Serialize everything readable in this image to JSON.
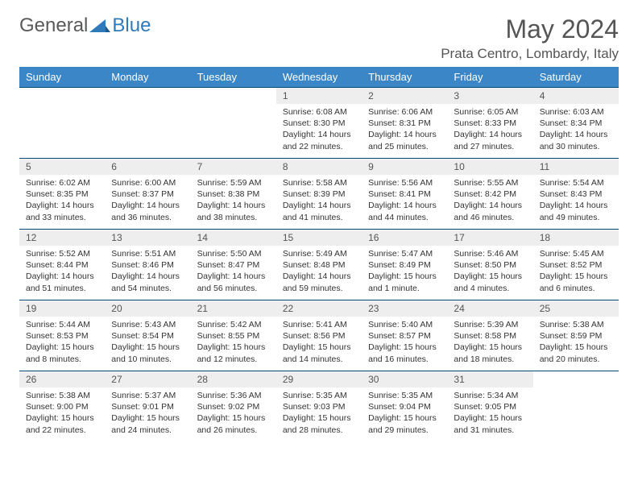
{
  "brand": {
    "part1": "General",
    "part2": "Blue"
  },
  "title": "May 2024",
  "location": "Prata Centro, Lombardy, Italy",
  "colors": {
    "header_bg": "#3b86c6",
    "header_text": "#ffffff",
    "daynum_bg": "#eeeeee",
    "row_border": "#004a7c",
    "brand_gray": "#58595b",
    "brand_blue": "#2f7ab9",
    "text": "#333333"
  },
  "typography": {
    "title_fontsize": 32,
    "location_fontsize": 17,
    "th_fontsize": 13,
    "cell_fontsize": 10.5
  },
  "weekdays": [
    "Sunday",
    "Monday",
    "Tuesday",
    "Wednesday",
    "Thursday",
    "Friday",
    "Saturday"
  ],
  "weeks": [
    [
      null,
      null,
      null,
      {
        "n": "1",
        "sr": "Sunrise: 6:08 AM",
        "ss": "Sunset: 8:30 PM",
        "d1": "Daylight: 14 hours",
        "d2": "and 22 minutes."
      },
      {
        "n": "2",
        "sr": "Sunrise: 6:06 AM",
        "ss": "Sunset: 8:31 PM",
        "d1": "Daylight: 14 hours",
        "d2": "and 25 minutes."
      },
      {
        "n": "3",
        "sr": "Sunrise: 6:05 AM",
        "ss": "Sunset: 8:33 PM",
        "d1": "Daylight: 14 hours",
        "d2": "and 27 minutes."
      },
      {
        "n": "4",
        "sr": "Sunrise: 6:03 AM",
        "ss": "Sunset: 8:34 PM",
        "d1": "Daylight: 14 hours",
        "d2": "and 30 minutes."
      }
    ],
    [
      {
        "n": "5",
        "sr": "Sunrise: 6:02 AM",
        "ss": "Sunset: 8:35 PM",
        "d1": "Daylight: 14 hours",
        "d2": "and 33 minutes."
      },
      {
        "n": "6",
        "sr": "Sunrise: 6:00 AM",
        "ss": "Sunset: 8:37 PM",
        "d1": "Daylight: 14 hours",
        "d2": "and 36 minutes."
      },
      {
        "n": "7",
        "sr": "Sunrise: 5:59 AM",
        "ss": "Sunset: 8:38 PM",
        "d1": "Daylight: 14 hours",
        "d2": "and 38 minutes."
      },
      {
        "n": "8",
        "sr": "Sunrise: 5:58 AM",
        "ss": "Sunset: 8:39 PM",
        "d1": "Daylight: 14 hours",
        "d2": "and 41 minutes."
      },
      {
        "n": "9",
        "sr": "Sunrise: 5:56 AM",
        "ss": "Sunset: 8:41 PM",
        "d1": "Daylight: 14 hours",
        "d2": "and 44 minutes."
      },
      {
        "n": "10",
        "sr": "Sunrise: 5:55 AM",
        "ss": "Sunset: 8:42 PM",
        "d1": "Daylight: 14 hours",
        "d2": "and 46 minutes."
      },
      {
        "n": "11",
        "sr": "Sunrise: 5:54 AM",
        "ss": "Sunset: 8:43 PM",
        "d1": "Daylight: 14 hours",
        "d2": "and 49 minutes."
      }
    ],
    [
      {
        "n": "12",
        "sr": "Sunrise: 5:52 AM",
        "ss": "Sunset: 8:44 PM",
        "d1": "Daylight: 14 hours",
        "d2": "and 51 minutes."
      },
      {
        "n": "13",
        "sr": "Sunrise: 5:51 AM",
        "ss": "Sunset: 8:46 PM",
        "d1": "Daylight: 14 hours",
        "d2": "and 54 minutes."
      },
      {
        "n": "14",
        "sr": "Sunrise: 5:50 AM",
        "ss": "Sunset: 8:47 PM",
        "d1": "Daylight: 14 hours",
        "d2": "and 56 minutes."
      },
      {
        "n": "15",
        "sr": "Sunrise: 5:49 AM",
        "ss": "Sunset: 8:48 PM",
        "d1": "Daylight: 14 hours",
        "d2": "and 59 minutes."
      },
      {
        "n": "16",
        "sr": "Sunrise: 5:47 AM",
        "ss": "Sunset: 8:49 PM",
        "d1": "Daylight: 15 hours",
        "d2": "and 1 minute."
      },
      {
        "n": "17",
        "sr": "Sunrise: 5:46 AM",
        "ss": "Sunset: 8:50 PM",
        "d1": "Daylight: 15 hours",
        "d2": "and 4 minutes."
      },
      {
        "n": "18",
        "sr": "Sunrise: 5:45 AM",
        "ss": "Sunset: 8:52 PM",
        "d1": "Daylight: 15 hours",
        "d2": "and 6 minutes."
      }
    ],
    [
      {
        "n": "19",
        "sr": "Sunrise: 5:44 AM",
        "ss": "Sunset: 8:53 PM",
        "d1": "Daylight: 15 hours",
        "d2": "and 8 minutes."
      },
      {
        "n": "20",
        "sr": "Sunrise: 5:43 AM",
        "ss": "Sunset: 8:54 PM",
        "d1": "Daylight: 15 hours",
        "d2": "and 10 minutes."
      },
      {
        "n": "21",
        "sr": "Sunrise: 5:42 AM",
        "ss": "Sunset: 8:55 PM",
        "d1": "Daylight: 15 hours",
        "d2": "and 12 minutes."
      },
      {
        "n": "22",
        "sr": "Sunrise: 5:41 AM",
        "ss": "Sunset: 8:56 PM",
        "d1": "Daylight: 15 hours",
        "d2": "and 14 minutes."
      },
      {
        "n": "23",
        "sr": "Sunrise: 5:40 AM",
        "ss": "Sunset: 8:57 PM",
        "d1": "Daylight: 15 hours",
        "d2": "and 16 minutes."
      },
      {
        "n": "24",
        "sr": "Sunrise: 5:39 AM",
        "ss": "Sunset: 8:58 PM",
        "d1": "Daylight: 15 hours",
        "d2": "and 18 minutes."
      },
      {
        "n": "25",
        "sr": "Sunrise: 5:38 AM",
        "ss": "Sunset: 8:59 PM",
        "d1": "Daylight: 15 hours",
        "d2": "and 20 minutes."
      }
    ],
    [
      {
        "n": "26",
        "sr": "Sunrise: 5:38 AM",
        "ss": "Sunset: 9:00 PM",
        "d1": "Daylight: 15 hours",
        "d2": "and 22 minutes."
      },
      {
        "n": "27",
        "sr": "Sunrise: 5:37 AM",
        "ss": "Sunset: 9:01 PM",
        "d1": "Daylight: 15 hours",
        "d2": "and 24 minutes."
      },
      {
        "n": "28",
        "sr": "Sunrise: 5:36 AM",
        "ss": "Sunset: 9:02 PM",
        "d1": "Daylight: 15 hours",
        "d2": "and 26 minutes."
      },
      {
        "n": "29",
        "sr": "Sunrise: 5:35 AM",
        "ss": "Sunset: 9:03 PM",
        "d1": "Daylight: 15 hours",
        "d2": "and 28 minutes."
      },
      {
        "n": "30",
        "sr": "Sunrise: 5:35 AM",
        "ss": "Sunset: 9:04 PM",
        "d1": "Daylight: 15 hours",
        "d2": "and 29 minutes."
      },
      {
        "n": "31",
        "sr": "Sunrise: 5:34 AM",
        "ss": "Sunset: 9:05 PM",
        "d1": "Daylight: 15 hours",
        "d2": "and 31 minutes."
      },
      null
    ]
  ]
}
